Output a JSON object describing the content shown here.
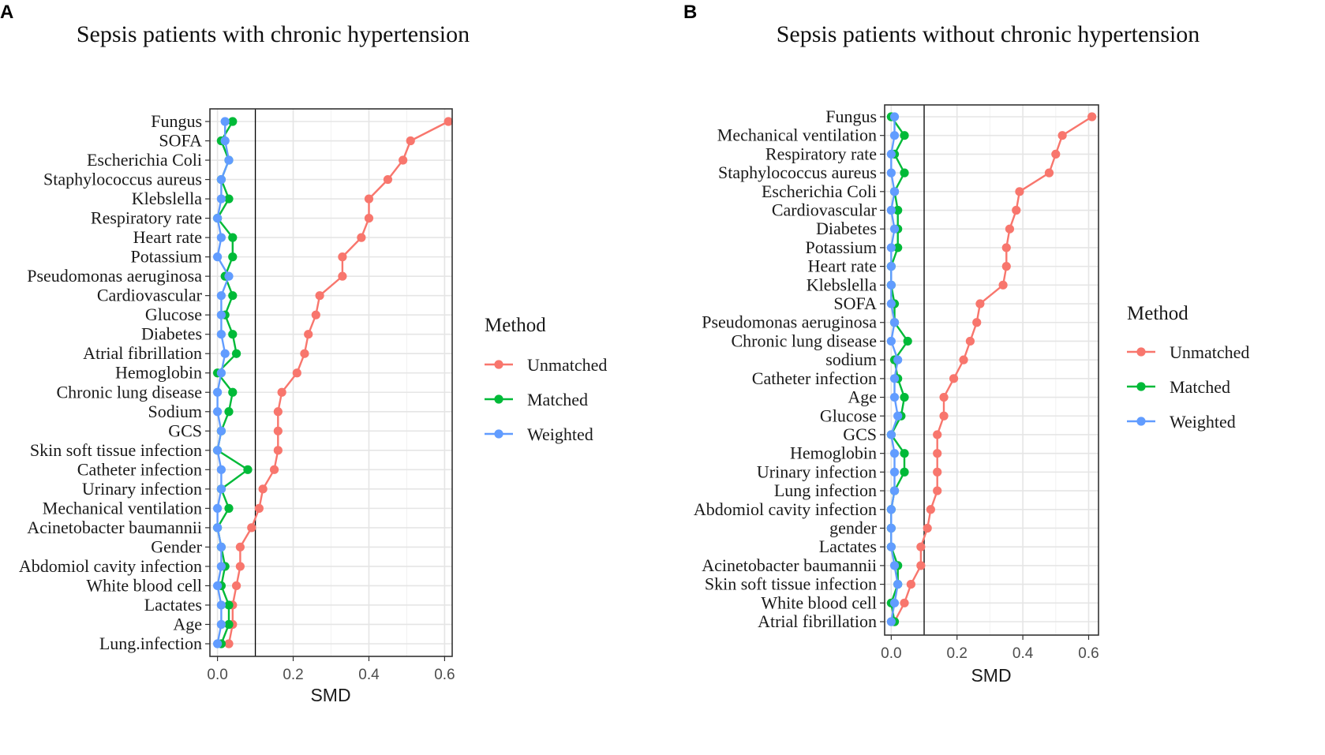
{
  "chart_data": [
    {
      "type": "line",
      "panel_label": "A",
      "title": "Sepsis patients with chronic hypertension",
      "xlabel": "SMD",
      "ylabel": "",
      "xlim": [
        -0.02,
        0.62
      ],
      "xticks": [
        0.0,
        0.2,
        0.4,
        0.6
      ],
      "xtick_labels": [
        "0.0",
        "0.2",
        "0.4",
        "0.6"
      ],
      "reference_line": 0.1,
      "legend_title": "Method",
      "legend_position": "right",
      "categories": [
        "Fungus",
        "SOFA",
        "Escherichia Coli",
        "Staphylococcus aureus",
        "Klebslella",
        "Respiratory rate",
        "Heart rate",
        "Potassium",
        "Pseudomonas aeruginosa",
        "Cardiovascular",
        "Glucose",
        "Diabetes",
        "Atrial fibrillation",
        "Hemoglobin",
        "Chronic lung disease",
        "Sodium",
        "GCS",
        "Skin soft tissue infection",
        "Catheter infection",
        "Urinary infection",
        "Mechanical ventilation",
        "Acinetobacter baumannii",
        "Gender",
        "Abdomiol cavity infection",
        "White blood cell",
        "Lactates",
        "Age",
        "Lung.infection"
      ],
      "series": [
        {
          "name": "Unmatched",
          "color": "#F8766D",
          "values": [
            0.61,
            0.51,
            0.49,
            0.45,
            0.4,
            0.4,
            0.38,
            0.33,
            0.33,
            0.27,
            0.26,
            0.24,
            0.23,
            0.21,
            0.17,
            0.16,
            0.16,
            0.16,
            0.15,
            0.12,
            0.11,
            0.09,
            0.06,
            0.06,
            0.05,
            0.04,
            0.04,
            0.03
          ]
        },
        {
          "name": "Matched",
          "color": "#00BA38",
          "values": [
            0.04,
            0.01,
            0.03,
            0.01,
            0.03,
            0.0,
            0.04,
            0.04,
            0.02,
            0.04,
            0.02,
            0.04,
            0.05,
            0.0,
            0.04,
            0.03,
            0.01,
            0.0,
            0.08,
            0.01,
            0.03,
            0.0,
            0.01,
            0.02,
            0.01,
            0.03,
            0.03,
            0.01
          ]
        },
        {
          "name": "Weighted",
          "color": "#619CFF",
          "values": [
            0.02,
            0.02,
            0.03,
            0.01,
            0.01,
            0.0,
            0.01,
            0.0,
            0.03,
            0.01,
            0.01,
            0.01,
            0.02,
            0.01,
            0.0,
            0.0,
            0.01,
            0.0,
            0.01,
            0.01,
            0.0,
            0.0,
            0.01,
            0.01,
            0.0,
            0.01,
            0.01,
            0.0
          ]
        }
      ]
    },
    {
      "type": "line",
      "panel_label": "B",
      "title": "Sepsis patients without chronic hypertension",
      "xlabel": "SMD",
      "ylabel": "",
      "xlim": [
        -0.02,
        0.63
      ],
      "xticks": [
        0.0,
        0.2,
        0.4,
        0.6
      ],
      "xtick_labels": [
        "0.0",
        "0.2",
        "0.4",
        "0.6"
      ],
      "reference_line": 0.1,
      "legend_title": "Method",
      "legend_position": "right",
      "categories": [
        "Fungus",
        "Mechanical ventilation",
        "Respiratory rate",
        "Staphylococcus aureus",
        "Escherichia Coli",
        "Cardiovascular",
        "Diabetes",
        "Potassium",
        "Heart rate",
        "Klebslella",
        "SOFA",
        "Pseudomonas aeruginosa",
        "Chronic lung disease",
        "sodium",
        "Catheter infection",
        "Age",
        "Glucose",
        "GCS",
        "Hemoglobin",
        "Urinary infection",
        "Lung infection",
        "Abdomiol cavity infection",
        "gender",
        "Lactates",
        "Acinetobacter baumannii",
        "Skin soft tissue infection",
        "White blood cell",
        "Atrial fibrillation"
      ],
      "series": [
        {
          "name": "Unmatched",
          "color": "#F8766D",
          "values": [
            0.61,
            0.52,
            0.5,
            0.48,
            0.39,
            0.38,
            0.36,
            0.35,
            0.35,
            0.34,
            0.27,
            0.26,
            0.24,
            0.22,
            0.19,
            0.16,
            0.16,
            0.14,
            0.14,
            0.14,
            0.14,
            0.12,
            0.11,
            0.09,
            0.09,
            0.06,
            0.04,
            0.01
          ]
        },
        {
          "name": "Matched",
          "color": "#00BA38",
          "values": [
            0.0,
            0.04,
            0.01,
            0.04,
            0.01,
            0.02,
            0.02,
            0.02,
            0.0,
            0.0,
            0.01,
            0.01,
            0.05,
            0.01,
            0.02,
            0.04,
            0.03,
            0.0,
            0.04,
            0.04,
            0.01,
            0.0,
            0.0,
            0.0,
            0.02,
            0.02,
            0.0,
            0.01
          ]
        },
        {
          "name": "Weighted",
          "color": "#619CFF",
          "values": [
            0.01,
            0.01,
            0.0,
            0.0,
            0.01,
            0.0,
            0.01,
            0.0,
            0.0,
            0.0,
            0.0,
            0.01,
            0.0,
            0.02,
            0.01,
            0.01,
            0.02,
            0.0,
            0.01,
            0.01,
            0.01,
            0.0,
            0.0,
            0.0,
            0.01,
            0.02,
            0.01,
            0.0
          ]
        }
      ]
    }
  ]
}
